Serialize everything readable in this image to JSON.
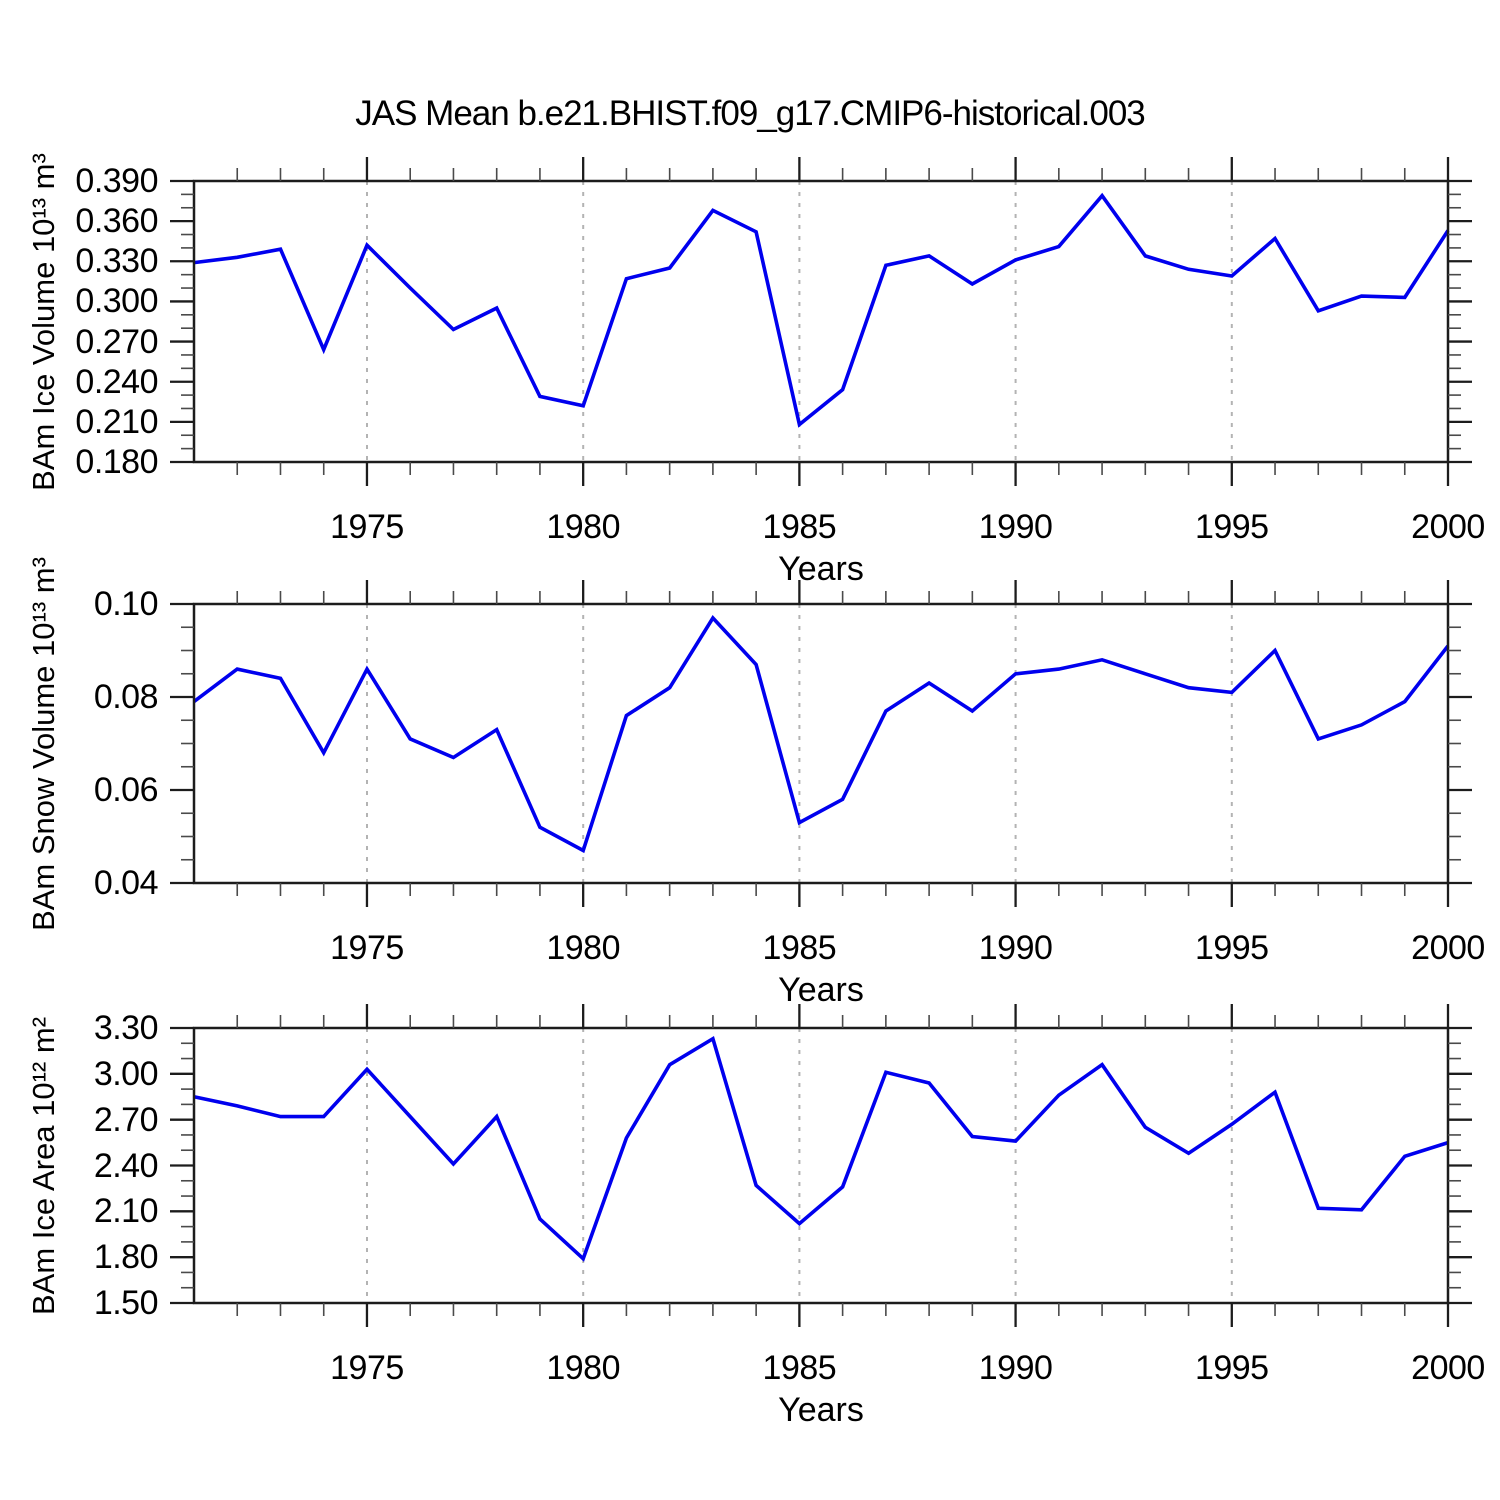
{
  "title": "JAS Mean b.e21.BHIST.f09_g17.CMIP6-historical.003",
  "colors": {
    "line": "#0000EE",
    "grid": "#B3B3B3",
    "axis": "#1C1C1C",
    "minor_tick": "#4A4A4A",
    "background": "#FFFFFF"
  },
  "chart_data": [
    {
      "type": "line",
      "ylabel": "BAm Ice Volume 10¹³ m³",
      "xlabel": "Years",
      "x": [
        1971,
        1972,
        1973,
        1974,
        1975,
        1976,
        1977,
        1978,
        1979,
        1980,
        1981,
        1982,
        1983,
        1984,
        1985,
        1986,
        1987,
        1988,
        1989,
        1990,
        1991,
        1992,
        1993,
        1994,
        1995,
        1996,
        1997,
        1998,
        1999,
        2000
      ],
      "values": [
        0.329,
        0.333,
        0.339,
        0.264,
        0.342,
        0.31,
        0.279,
        0.295,
        0.229,
        0.222,
        0.317,
        0.325,
        0.368,
        0.352,
        0.208,
        0.234,
        0.327,
        0.334,
        0.313,
        0.331,
        0.341,
        0.379,
        0.334,
        0.324,
        0.319,
        0.347,
        0.293,
        0.304,
        0.303,
        0.353
      ],
      "xlim": [
        1971,
        2000
      ],
      "ylim": [
        0.18,
        0.39
      ],
      "yticks": [
        0.39,
        0.36,
        0.33,
        0.3,
        0.27,
        0.24,
        0.21,
        0.18
      ],
      "ytick_labels": [
        "0.390",
        "0.360",
        "0.330",
        "0.300",
        "0.270",
        "0.240",
        "0.210",
        "0.180"
      ],
      "y_minor_step": 0.01,
      "xticks": [
        1975,
        1980,
        1985,
        1990,
        1995,
        2000
      ],
      "xtick_labels": [
        "1975",
        "1980",
        "1985",
        "1990",
        "1995",
        "2000"
      ],
      "x_minor_step": 1,
      "grid_x": [
        1975,
        1980,
        1985,
        1990,
        1995
      ],
      "grid_style": "dashed"
    },
    {
      "type": "line",
      "ylabel": "BAm Snow Volume 10¹³ m³",
      "xlabel": "Years",
      "x": [
        1971,
        1972,
        1973,
        1974,
        1975,
        1976,
        1977,
        1978,
        1979,
        1980,
        1981,
        1982,
        1983,
        1984,
        1985,
        1986,
        1987,
        1988,
        1989,
        1990,
        1991,
        1992,
        1993,
        1994,
        1995,
        1996,
        1997,
        1998,
        1999,
        2000
      ],
      "values": [
        0.079,
        0.086,
        0.084,
        0.068,
        0.086,
        0.071,
        0.067,
        0.073,
        0.052,
        0.047,
        0.076,
        0.082,
        0.097,
        0.087,
        0.053,
        0.058,
        0.077,
        0.083,
        0.077,
        0.085,
        0.086,
        0.088,
        0.085,
        0.082,
        0.081,
        0.09,
        0.071,
        0.074,
        0.079,
        0.091
      ],
      "xlim": [
        1971,
        2000
      ],
      "ylim": [
        0.04,
        0.1
      ],
      "yticks": [
        0.1,
        0.08,
        0.06,
        0.04
      ],
      "ytick_labels": [
        "0.10",
        "0.08",
        "0.06",
        "0.04"
      ],
      "y_minor_step": 0.005,
      "xticks": [
        1975,
        1980,
        1985,
        1990,
        1995,
        2000
      ],
      "xtick_labels": [
        "1975",
        "1980",
        "1985",
        "1990",
        "1995",
        "2000"
      ],
      "x_minor_step": 1,
      "grid_x": [
        1975,
        1980,
        1985,
        1990,
        1995
      ],
      "grid_style": "dashed"
    },
    {
      "type": "line",
      "ylabel": "BAm Ice Area 10¹² m²",
      "xlabel": "Years",
      "x": [
        1971,
        1972,
        1973,
        1974,
        1975,
        1976,
        1977,
        1978,
        1979,
        1980,
        1981,
        1982,
        1983,
        1984,
        1985,
        1986,
        1987,
        1988,
        1989,
        1990,
        1991,
        1992,
        1993,
        1994,
        1995,
        1996,
        1997,
        1998,
        1999,
        2000
      ],
      "values": [
        2.85,
        2.79,
        2.72,
        2.72,
        3.03,
        2.72,
        2.41,
        2.72,
        2.05,
        1.79,
        2.58,
        3.06,
        3.23,
        2.27,
        2.02,
        2.26,
        3.01,
        2.94,
        2.59,
        2.56,
        2.86,
        3.06,
        2.65,
        2.48,
        2.67,
        2.88,
        2.12,
        2.11,
        2.46,
        2.55
      ],
      "xlim": [
        1971,
        2000
      ],
      "ylim": [
        1.5,
        3.3
      ],
      "yticks": [
        3.3,
        3.0,
        2.7,
        2.4,
        2.1,
        1.8,
        1.5
      ],
      "ytick_labels": [
        "3.30",
        "3.00",
        "2.70",
        "2.40",
        "2.10",
        "1.80",
        "1.50"
      ],
      "y_minor_step": 0.1,
      "xticks": [
        1975,
        1980,
        1985,
        1990,
        1995,
        2000
      ],
      "xtick_labels": [
        "1975",
        "1980",
        "1985",
        "1990",
        "1995",
        "2000"
      ],
      "x_minor_step": 1,
      "grid_x": [
        1975,
        1980,
        1985,
        1990,
        1995
      ],
      "grid_style": "dashed"
    }
  ]
}
